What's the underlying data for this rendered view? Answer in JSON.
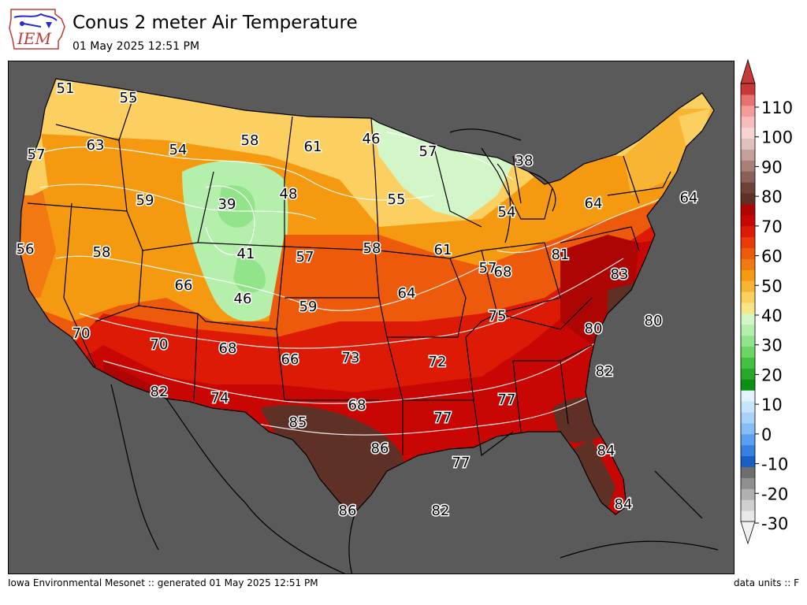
{
  "header": {
    "logo_text": "IEM",
    "title": "Conus 2 meter Air Temperature",
    "subtitle": "01 May 2025 12:51 PM"
  },
  "footer": {
    "left": "Iowa Environmental Mesonet :: generated 01 May 2025 12:51 PM",
    "right": "data units :: F"
  },
  "colorbar": {
    "ticks": [
      "110",
      "100",
      "90",
      "80",
      "70",
      "60",
      "50",
      "40",
      "30",
      "20",
      "10",
      "0",
      "-10",
      "-20",
      "-30"
    ],
    "colors": [
      "#e8e8e8",
      "#d0d0d0",
      "#b0b0b0",
      "#909090",
      "#6e6e6e",
      "#1a5fc7",
      "#3580e0",
      "#5aa0ee",
      "#86bdf5",
      "#a8d2fa",
      "#c6e5fc",
      "#e2f4fe",
      "#0b8f14",
      "#2aa82d",
      "#45c042",
      "#6bd665",
      "#92e48a",
      "#b5efac",
      "#d2f6c8",
      "#f8e58a",
      "#fcd060",
      "#f8b533",
      "#f59a10",
      "#f27812",
      "#ee5a0c",
      "#e93a08",
      "#dd1a05",
      "#c80704",
      "#ad0503",
      "#5e3026",
      "#6f4238",
      "#8a6058",
      "#a88078",
      "#c4a09a",
      "#e0c2bc",
      "#f3d5d2",
      "#fabbbb",
      "#f49b9b",
      "#e67272",
      "#c73838"
    ],
    "arrow_bottom_color": "#f0f0f0",
    "arrow_top_color": "#c73838"
  },
  "map": {
    "background_color": "#5a5a5a",
    "labels": [
      "51",
      "55",
      "63",
      "57",
      "54",
      "58",
      "61",
      "46",
      "57",
      "38",
      "39",
      "48",
      "59",
      "55",
      "57",
      "56",
      "58",
      "41",
      "57",
      "58",
      "61",
      "54",
      "64",
      "64",
      "66",
      "68",
      "46",
      "59",
      "64",
      "81",
      "83",
      "75",
      "70",
      "70",
      "68",
      "66",
      "73",
      "72",
      "80",
      "80",
      "82",
      "74",
      "68",
      "77",
      "77",
      "82",
      "85",
      "86",
      "77",
      "84",
      "86",
      "82",
      "84"
    ]
  }
}
